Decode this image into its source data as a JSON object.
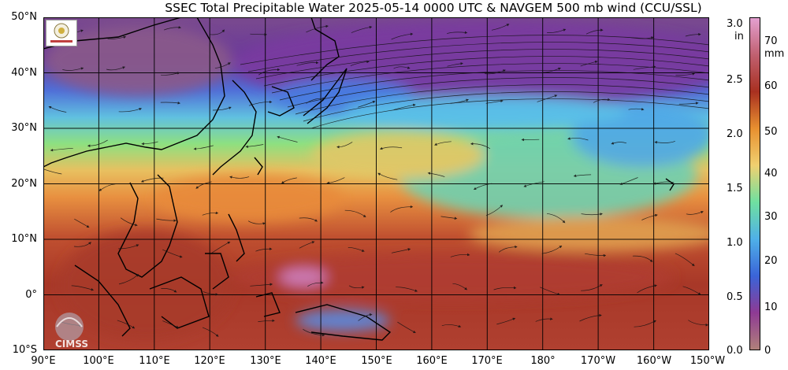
{
  "title": "SSEC Total Precipitable Water  2025-05-14 0000 UTC & NAVGEM 500 mb wind (CCU/SSL)",
  "lat_labels": [
    "50°N",
    "40°N",
    "30°N",
    "20°N",
    "10°N",
    "0°",
    "10°S"
  ],
  "lon_labels": [
    "90°E",
    "100°E",
    "110°E",
    "120°E",
    "130°E",
    "140°E",
    "150°E",
    "160°E",
    "170°E",
    "180°",
    "170°W",
    "160°W",
    "150°W"
  ],
  "colorbar": {
    "inch_unit": "in",
    "inch_ticks": [
      "3.0",
      "2.5",
      "2.0",
      "1.5",
      "1.0",
      "0.5",
      "0.0"
    ],
    "mm_unit": "mm",
    "mm_ticks": [
      "70",
      "60",
      "50",
      "40",
      "30",
      "20",
      "10",
      "0"
    ],
    "stops": [
      "#b0807a",
      "#8e3a94",
      "#3a64d8",
      "#4fb0e8",
      "#6fe0a0",
      "#f0d070",
      "#e89030",
      "#a83020",
      "#c06070",
      "#e4a0d0"
    ]
  },
  "logos": {
    "top_left": "ssec-logo-icon",
    "bottom_left": "CIMSS"
  }
}
